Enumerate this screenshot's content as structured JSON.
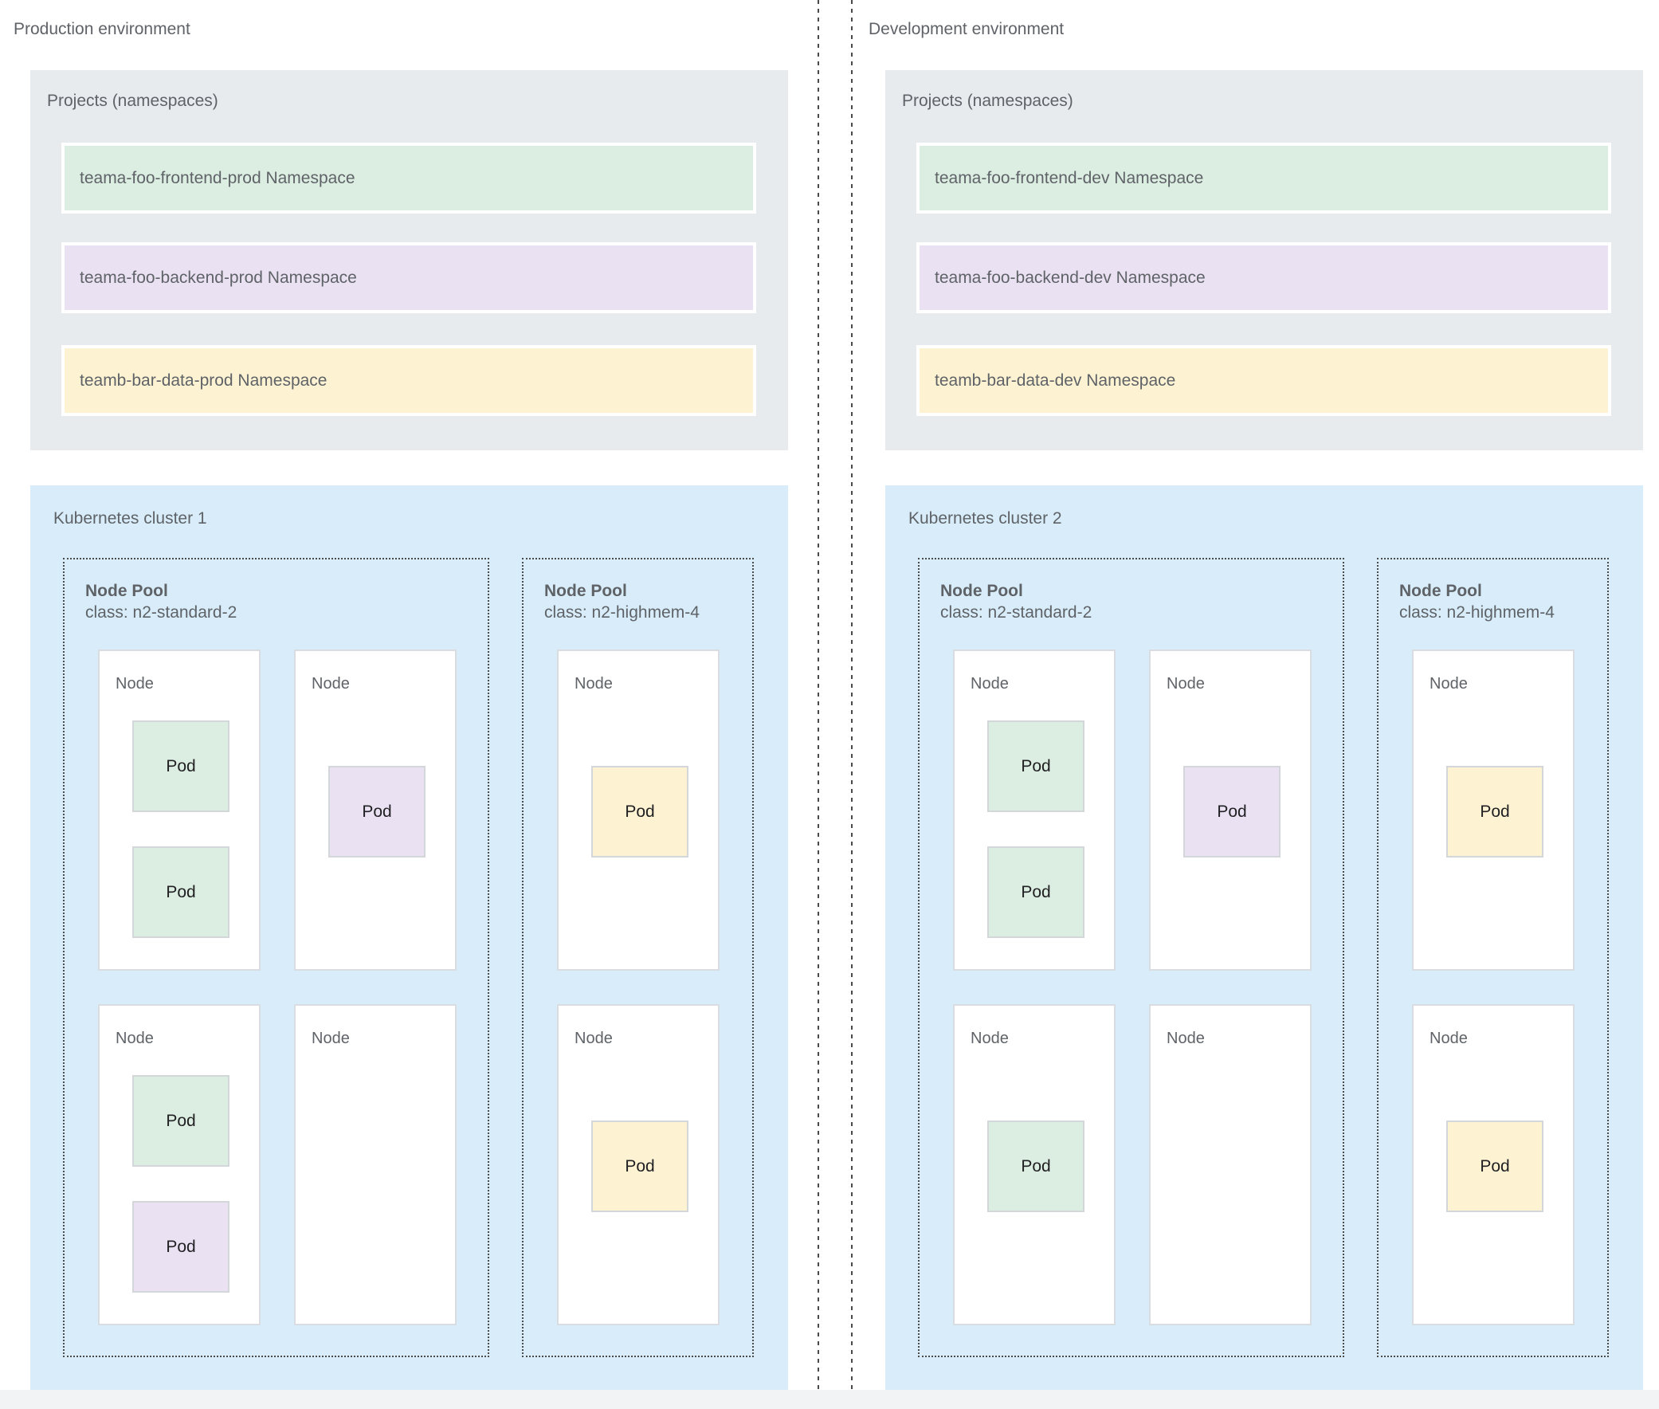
{
  "palette": {
    "container_gray": "#e8ebee",
    "cluster_blue": "#d8edf9",
    "green": "#dcede2",
    "purple": "#eae1f3",
    "yellow": "#fdf3d3",
    "label_gray": "#5f6368",
    "pod_text": "#212124",
    "footer_strip": "#f1f3f4",
    "dash_color": "#4a4a4a"
  },
  "environments": [
    {
      "title": "Production environment",
      "projects_label": "Projects (namespaces)",
      "namespaces": [
        {
          "label": "teama-foo-frontend-prod Namespace",
          "color": "green"
        },
        {
          "label": "teama-foo-backend-prod Namespace",
          "color": "purple"
        },
        {
          "label": "teamb-bar-data-prod Namespace",
          "color": "yellow"
        }
      ],
      "cluster": {
        "title": "Kubernetes cluster 1",
        "node_pools": [
          {
            "title": "Node Pool",
            "class_line": "class: n2-standard-2",
            "nodes": [
              {
                "label": "Node",
                "row": 0,
                "col": 0,
                "pods": [
                  {
                    "label": "Pod",
                    "color": "green",
                    "slot": "top"
                  },
                  {
                    "label": "Pod",
                    "color": "green",
                    "slot": "bottom"
                  }
                ]
              },
              {
                "label": "Node",
                "row": 0,
                "col": 1,
                "pods": [
                  {
                    "label": "Pod",
                    "color": "purple",
                    "slot": "center"
                  }
                ]
              },
              {
                "label": "Node",
                "row": 1,
                "col": 0,
                "pods": [
                  {
                    "label": "Pod",
                    "color": "green",
                    "slot": "top"
                  },
                  {
                    "label": "Pod",
                    "color": "purple",
                    "slot": "bottom"
                  }
                ]
              },
              {
                "label": "Node",
                "row": 1,
                "col": 1,
                "pods": []
              }
            ]
          },
          {
            "title": "Node Pool",
            "class_line": "class: n2-highmem-4",
            "nodes": [
              {
                "label": "Node",
                "row": 0,
                "col": 0,
                "pods": [
                  {
                    "label": "Pod",
                    "color": "yellow",
                    "slot": "center"
                  }
                ]
              },
              {
                "label": "Node",
                "row": 1,
                "col": 0,
                "pods": [
                  {
                    "label": "Pod",
                    "color": "yellow",
                    "slot": "center"
                  }
                ]
              }
            ]
          }
        ]
      }
    },
    {
      "title": "Development environment",
      "projects_label": "Projects (namespaces)",
      "namespaces": [
        {
          "label": "teama-foo-frontend-dev Namespace",
          "color": "green"
        },
        {
          "label": "teama-foo-backend-dev Namespace",
          "color": "purple"
        },
        {
          "label": "teamb-bar-data-dev Namespace",
          "color": "yellow"
        }
      ],
      "cluster": {
        "title": "Kubernetes cluster 2",
        "node_pools": [
          {
            "title": "Node Pool",
            "class_line": "class: n2-standard-2",
            "nodes": [
              {
                "label": "Node",
                "row": 0,
                "col": 0,
                "pods": [
                  {
                    "label": "Pod",
                    "color": "green",
                    "slot": "top"
                  },
                  {
                    "label": "Pod",
                    "color": "green",
                    "slot": "bottom"
                  }
                ]
              },
              {
                "label": "Node",
                "row": 0,
                "col": 1,
                "pods": [
                  {
                    "label": "Pod",
                    "color": "purple",
                    "slot": "center"
                  }
                ]
              },
              {
                "label": "Node",
                "row": 1,
                "col": 0,
                "pods": [
                  {
                    "label": "Pod",
                    "color": "green",
                    "slot": "center"
                  }
                ]
              },
              {
                "label": "Node",
                "row": 1,
                "col": 1,
                "pods": []
              }
            ]
          },
          {
            "title": "Node Pool",
            "class_line": "class: n2-highmem-4",
            "nodes": [
              {
                "label": "Node",
                "row": 0,
                "col": 0,
                "pods": [
                  {
                    "label": "Pod",
                    "color": "yellow",
                    "slot": "center"
                  }
                ]
              },
              {
                "label": "Node",
                "row": 1,
                "col": 0,
                "pods": [
                  {
                    "label": "Pod",
                    "color": "yellow",
                    "slot": "center"
                  }
                ]
              }
            ]
          }
        ]
      }
    }
  ]
}
